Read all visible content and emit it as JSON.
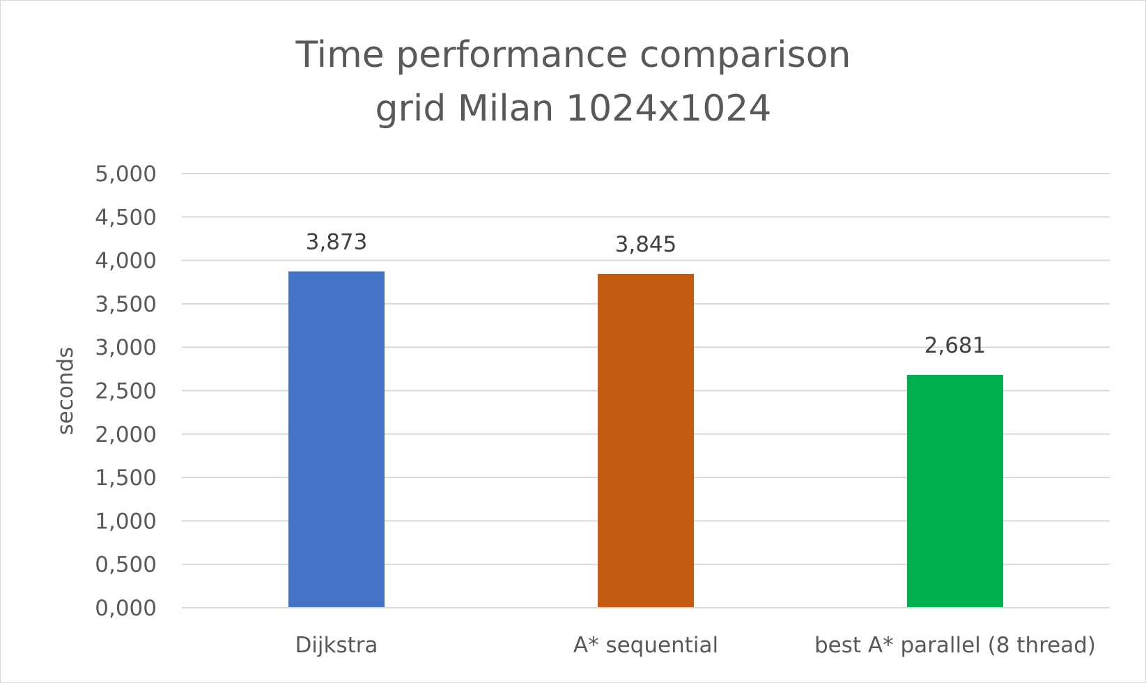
{
  "chart_data": {
    "type": "bar",
    "title": [
      "Time performance comparison",
      "grid Milan 1024x1024"
    ],
    "xlabel": "",
    "ylabel": "seconds",
    "categories": [
      "Dijkstra",
      "A* sequential",
      "best A* parallel (8 thread)"
    ],
    "values": [
      3.873,
      3.845,
      2.681
    ],
    "value_labels": [
      "3,873",
      "3,845",
      "2,681"
    ],
    "colors": [
      "#4472C4",
      "#C55A11",
      "#00B050"
    ],
    "ylim": [
      0,
      5
    ],
    "yticks": [
      0,
      0.5,
      1,
      1.5,
      2,
      2.5,
      3,
      3.5,
      4,
      4.5,
      5
    ],
    "ytick_labels": [
      "0,000",
      "0,500",
      "1,000",
      "1,500",
      "2,000",
      "2,500",
      "3,000",
      "3,500",
      "4,000",
      "4,500",
      "5,000"
    ],
    "grid": true,
    "legend": "none"
  }
}
